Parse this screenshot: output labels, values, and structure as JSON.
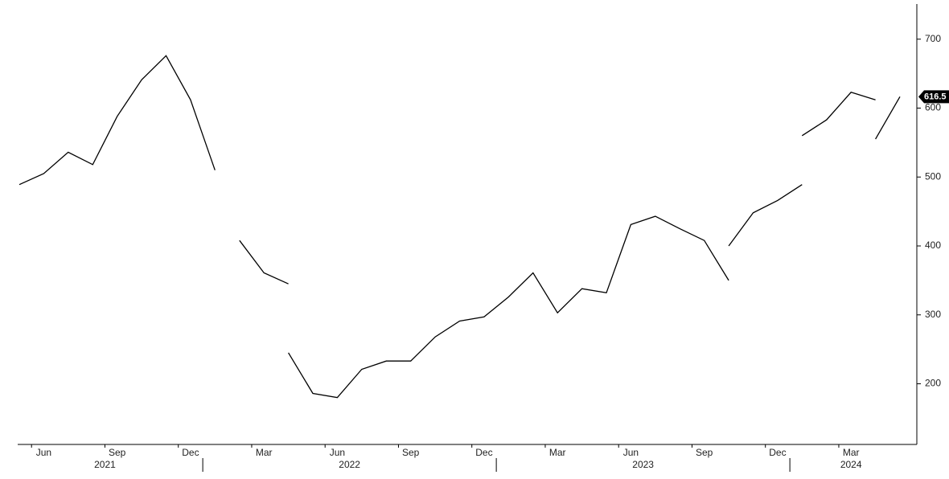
{
  "chart_data": {
    "type": "line",
    "color": "#000000",
    "xlim": [
      "2021-05",
      "2024-05"
    ],
    "ylim": [
      112,
      751
    ],
    "yticks": [
      200,
      300,
      400,
      500,
      600,
      700
    ],
    "xticks": [
      {
        "value": "2021-06",
        "label": "Jun"
      },
      {
        "value": "2021-09",
        "label": "Sep"
      },
      {
        "value": "2021-12",
        "label": "Dec"
      },
      {
        "value": "2022-03",
        "label": "Mar"
      },
      {
        "value": "2022-06",
        "label": "Jun"
      },
      {
        "value": "2022-09",
        "label": "Sep"
      },
      {
        "value": "2022-12",
        "label": "Dec"
      },
      {
        "value": "2023-03",
        "label": "Mar"
      },
      {
        "value": "2023-06",
        "label": "Jun"
      },
      {
        "value": "2023-09",
        "label": "Sep"
      },
      {
        "value": "2023-12",
        "label": "Dec"
      },
      {
        "value": "2024-03",
        "label": "Mar"
      }
    ],
    "years": [
      2021,
      2022,
      2023,
      2024
    ],
    "last_value": 616.5,
    "series": [
      {
        "x": [
          "2021-05",
          "2021-06",
          "2021-07",
          "2021-08",
          "2021-09",
          "2021-10",
          "2021-11",
          "2021-12",
          "2022-01"
        ],
        "values": [
          489,
          505,
          536,
          518,
          588,
          641,
          676,
          612,
          510
        ]
      },
      {
        "x": [
          "2022-02",
          "2022-03",
          "2022-04"
        ],
        "values": [
          408,
          361,
          345
        ]
      },
      {
        "x": [
          "2022-04",
          "2022-05",
          "2022-06",
          "2022-07",
          "2022-08",
          "2022-09",
          "2022-10",
          "2022-11",
          "2022-12",
          "2023-01",
          "2023-02",
          "2023-03",
          "2023-04",
          "2023-05",
          "2023-06",
          "2023-07",
          "2023-08",
          "2023-09",
          "2023-10"
        ],
        "values": [
          245,
          186,
          180,
          221,
          233,
          233,
          268,
          291,
          297,
          326,
          361,
          303,
          338,
          332,
          431,
          443,
          425,
          408,
          350
        ]
      },
      {
        "x": [
          "2023-10",
          "2023-11",
          "2023-12",
          "2024-01"
        ],
        "values": [
          400,
          448,
          466,
          489
        ]
      },
      {
        "x": [
          "2024-01",
          "2024-02",
          "2024-03",
          "2024-04"
        ],
        "values": [
          560,
          583,
          623,
          612
        ]
      },
      {
        "x": [
          "2024-04",
          "2024-05"
        ],
        "values": [
          555,
          616.5
        ]
      }
    ]
  }
}
